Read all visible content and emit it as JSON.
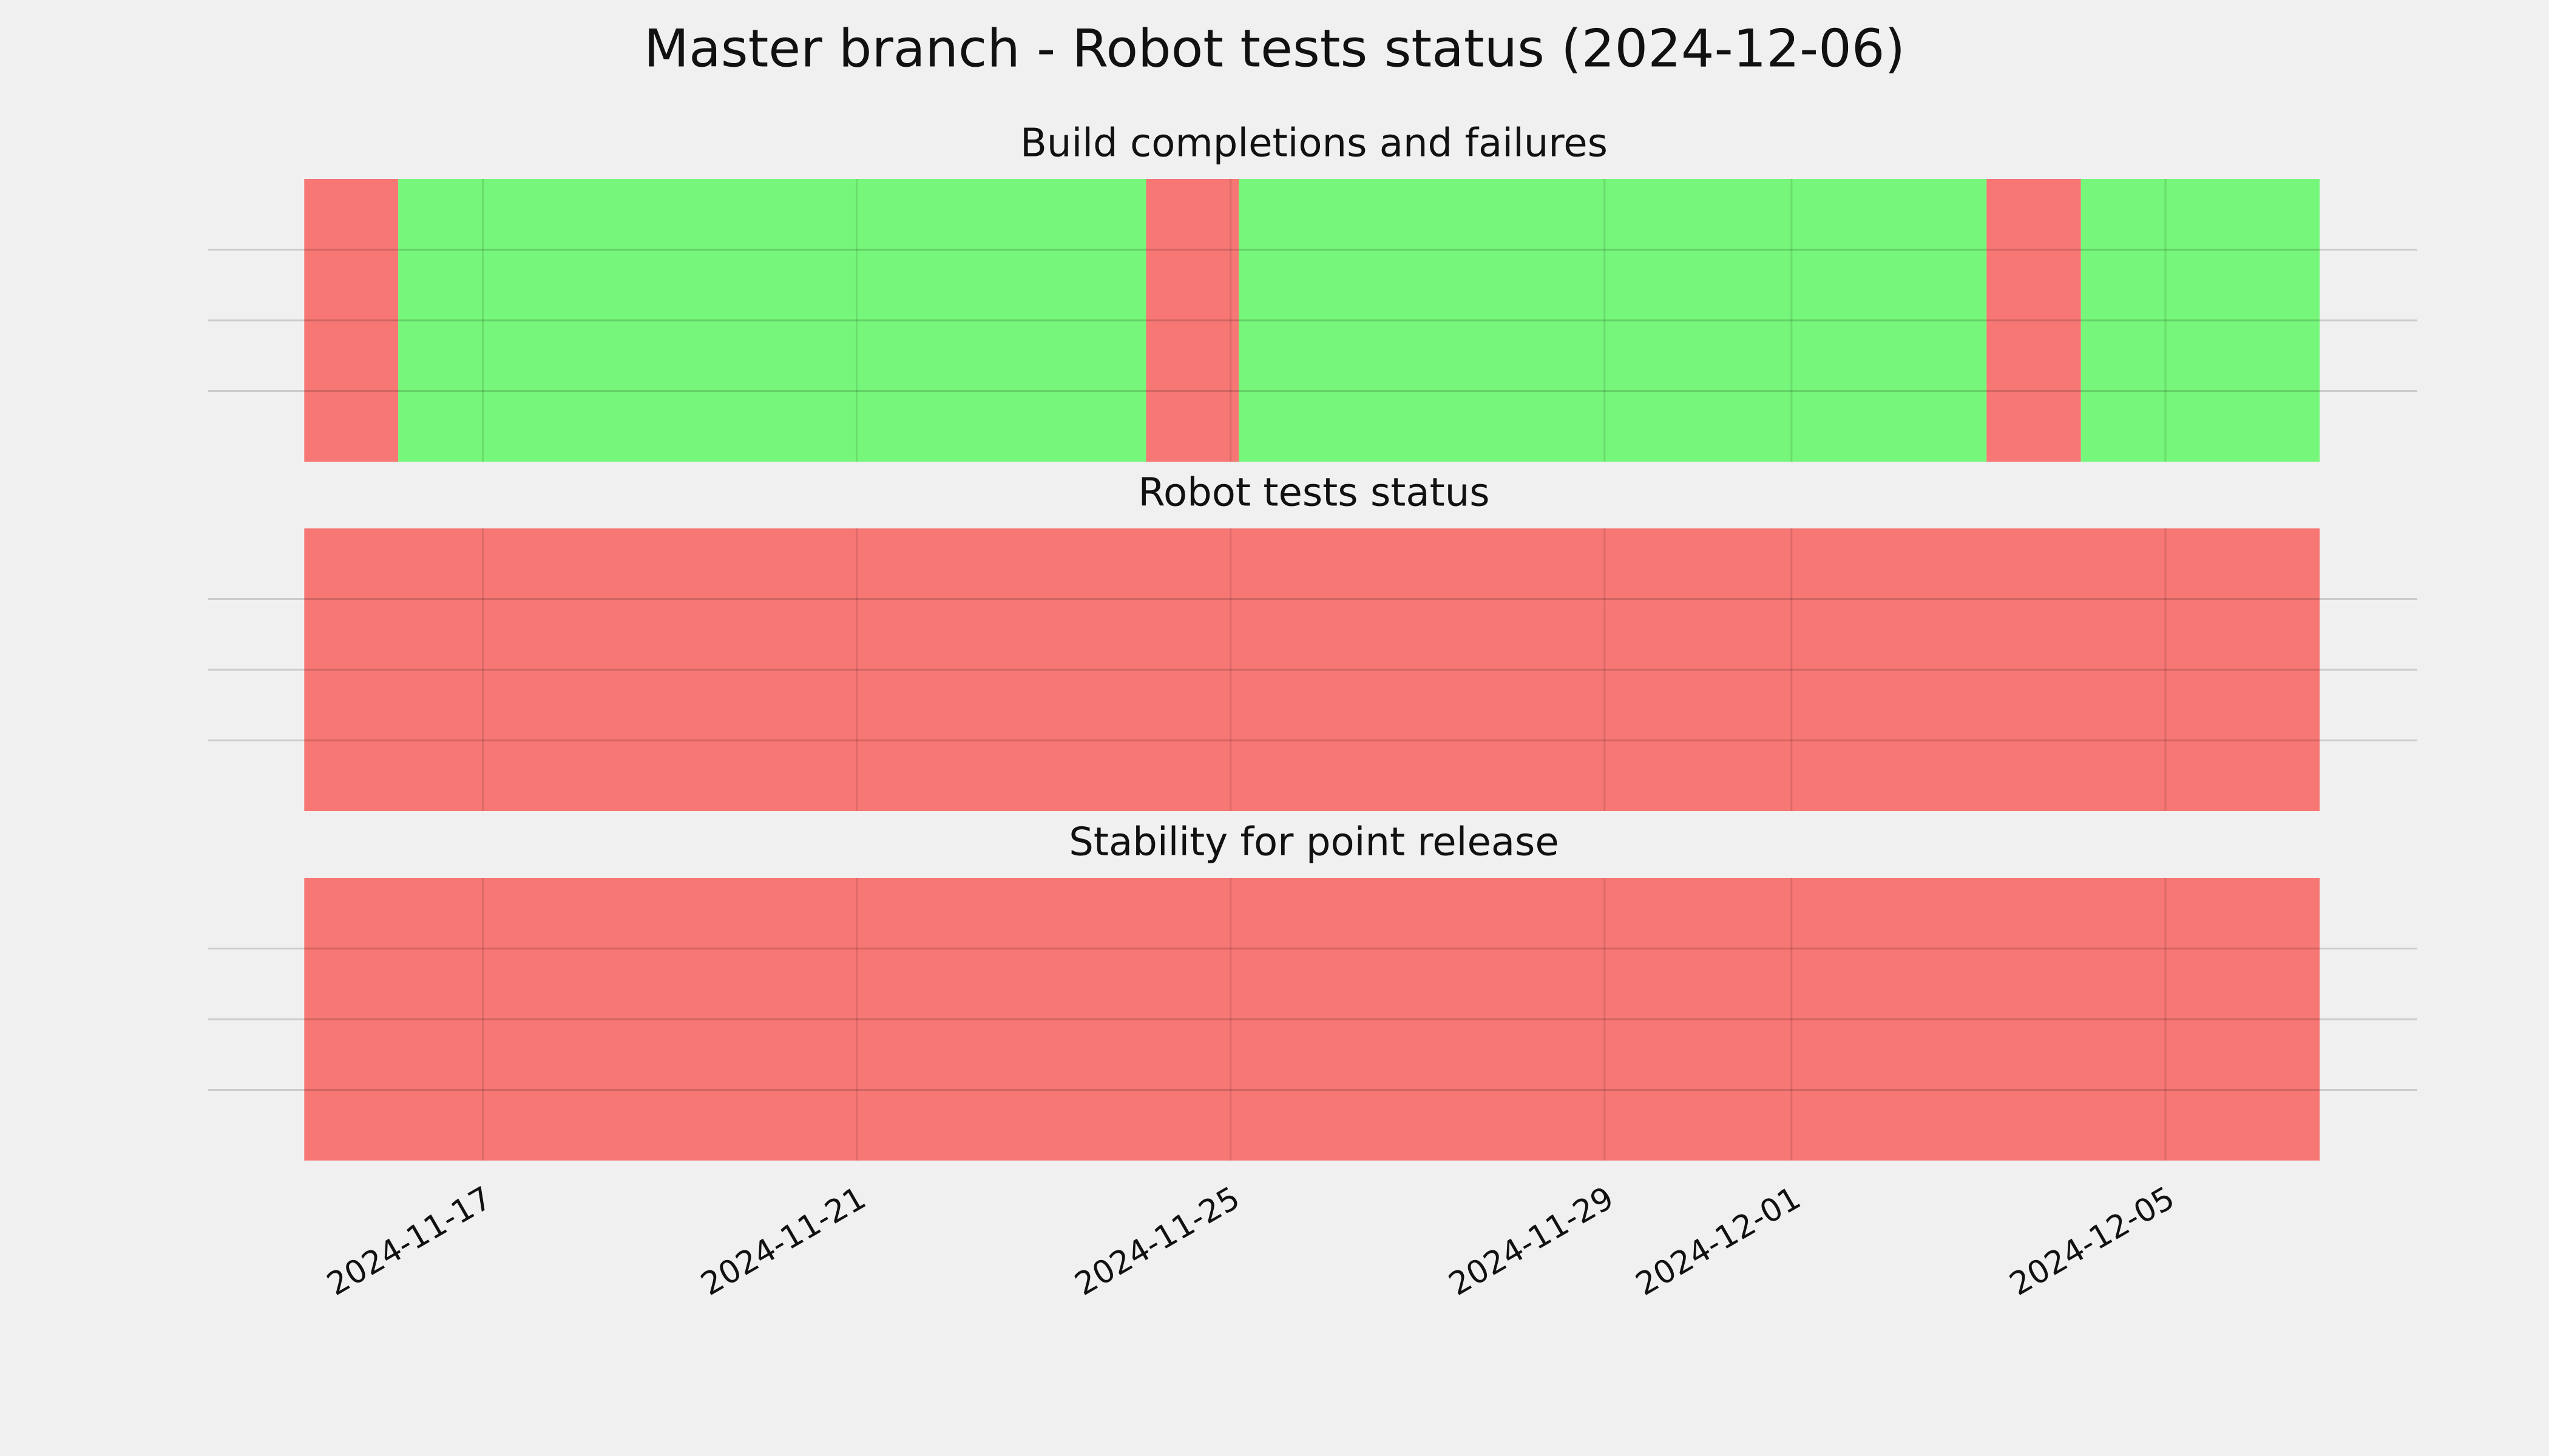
{
  "chart_data": {
    "type": "timeline",
    "title": "Master branch - Robot tests status (2024-12-06)",
    "xlim": [
      "2024-11-14T01:30",
      "2024-12-07T16:40"
    ],
    "xticks": [
      "2024-11-17",
      "2024-11-21",
      "2024-11-25",
      "2024-11-29",
      "2024-12-01",
      "2024-12-05"
    ],
    "ylim": [
      0,
      1
    ],
    "yticks": [
      0.25,
      0.5,
      0.75
    ],
    "show_ytick_labels": false,
    "grid": true,
    "panels": [
      {
        "title": "Build completions and failures",
        "segments": [
          {
            "start": "2024-11-15T02:10",
            "end": "2024-11-16T02:18",
            "color": "#f67774"
          },
          {
            "start": "2024-11-16T02:18",
            "end": "2024-11-24T02:18",
            "color": "#76f67a"
          },
          {
            "start": "2024-11-24T02:18",
            "end": "2024-11-25T02:05",
            "color": "#f67774"
          },
          {
            "start": "2024-11-25T02:05",
            "end": "2024-12-03T02:05",
            "color": "#76f67a"
          },
          {
            "start": "2024-12-03T02:05",
            "end": "2024-12-04T02:18",
            "color": "#f67774"
          },
          {
            "start": "2024-12-04T02:18",
            "end": "2024-12-06T15:36",
            "color": "#76f67a"
          }
        ]
      },
      {
        "title": "Robot tests status",
        "segments": [
          {
            "start": "2024-11-15T02:10",
            "end": "2024-12-06T15:36",
            "color": "#f67774"
          }
        ]
      },
      {
        "title": "Stability for point release",
        "segments": [
          {
            "start": "2024-11-15T02:10",
            "end": "2024-12-06T15:36",
            "color": "#f67774"
          }
        ]
      }
    ]
  }
}
